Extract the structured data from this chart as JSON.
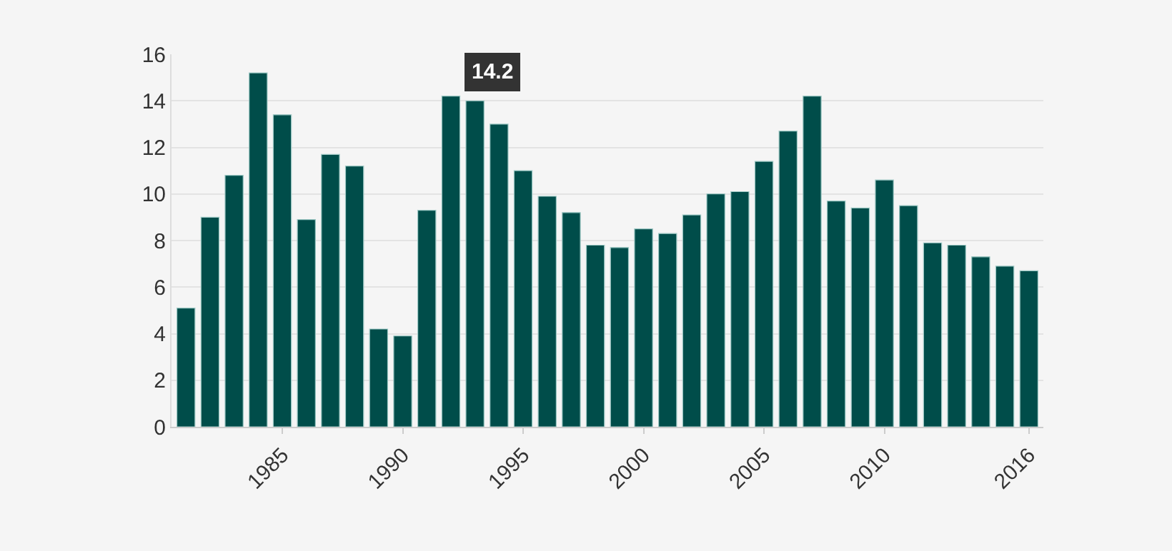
{
  "chart_data": {
    "type": "bar",
    "x": [
      1981,
      1982,
      1983,
      1984,
      1985,
      1986,
      1987,
      1988,
      1989,
      1990,
      1991,
      1992,
      1993,
      1994,
      1995,
      1996,
      1997,
      1998,
      1999,
      2000,
      2001,
      2002,
      2003,
      2004,
      2005,
      2006,
      2007,
      2008,
      2009,
      2010,
      2011,
      2012,
      2013,
      2014,
      2015,
      2016
    ],
    "values": [
      5.1,
      9.0,
      10.8,
      15.2,
      13.4,
      8.9,
      11.7,
      11.2,
      4.2,
      3.9,
      9.3,
      14.2,
      14.0,
      13.0,
      11.0,
      9.9,
      9.2,
      7.8,
      7.7,
      8.5,
      8.3,
      9.1,
      10.0,
      10.1,
      11.4,
      12.7,
      14.2,
      9.7,
      9.4,
      10.6,
      9.5,
      7.9,
      7.8,
      7.3,
      6.9,
      6.7
    ],
    "color": "#004d4a",
    "xlim": [
      1980.4,
      2016.6
    ],
    "xticks": [
      1985,
      1990,
      1995,
      2000,
      2005,
      2010,
      2016
    ],
    "ylim": [
      0,
      16
    ],
    "yticks": [
      0,
      2,
      4,
      6,
      8,
      10,
      12,
      14,
      16
    ],
    "grid": "y",
    "annotations": [
      {
        "text": "14.2",
        "x": 1992,
        "y": 14.2
      }
    ]
  }
}
